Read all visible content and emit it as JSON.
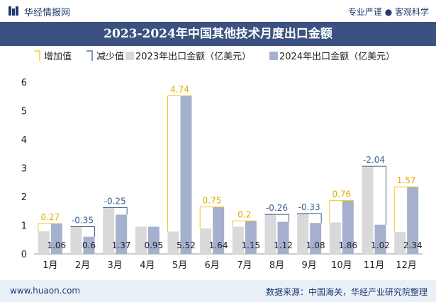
{
  "header": {
    "brand": "华经情报网",
    "tagline": "专业严谨 ● 客观科学",
    "title": "2023-2024年中国其他技术月度出口金额"
  },
  "footer": {
    "website": "www.huaon.com",
    "source": "数据来源：中国海关，华经产业研究院整理"
  },
  "colors": {
    "series_2023": "#d9d9d9",
    "series_2024": "#a5b0ce",
    "increase": "#f5c518",
    "decrease": "#3b5e8c"
  },
  "chart_data": {
    "type": "bar",
    "categories": [
      "1月",
      "2月",
      "3月",
      "4月",
      "5月",
      "6月",
      "7月",
      "8月",
      "9月",
      "10月",
      "11月",
      "12月"
    ],
    "legend": [
      "增加值",
      "减少值",
      "2023年出口金额（亿美元）",
      "2024年出口金额（亿美元）"
    ],
    "series": [
      {
        "name": "2023年出口金额（亿美元）",
        "values": [
          0.79,
          0.95,
          1.62,
          0.95,
          0.78,
          0.89,
          0.95,
          1.38,
          1.41,
          1.1,
          3.06,
          0.77
        ]
      },
      {
        "name": "2024年出口金额（亿美元）",
        "values": [
          1.06,
          0.6,
          1.37,
          0.95,
          5.52,
          1.64,
          1.15,
          1.12,
          1.08,
          1.86,
          1.02,
          2.34
        ]
      }
    ],
    "changes": [
      0.27,
      -0.35,
      -0.25,
      null,
      4.74,
      0.75,
      0.2,
      -0.26,
      -0.33,
      0.76,
      -2.04,
      1.57
    ],
    "yticks": [
      0,
      1,
      2,
      3,
      4,
      5,
      6
    ],
    "ylim": [
      0,
      6
    ],
    "grid": false,
    "legend_position": "top-left"
  }
}
